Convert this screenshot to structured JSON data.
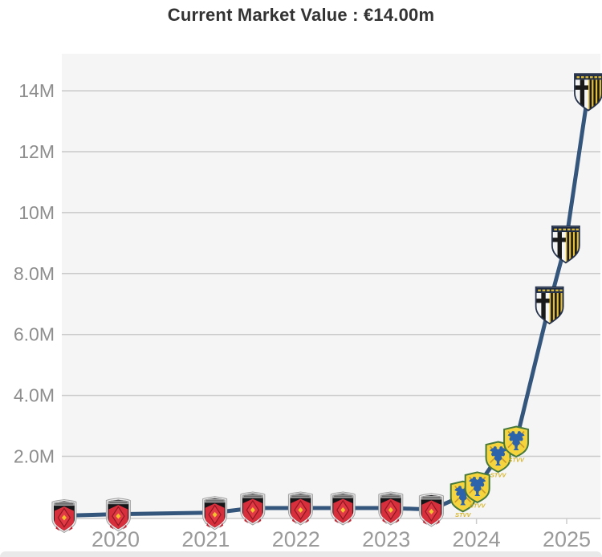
{
  "header": {
    "title": "Current Market Value : €14.00m"
  },
  "chart_data": {
    "type": "line",
    "title": "Current Market Value : €14.00m",
    "currency": "EUR",
    "unit": "million €",
    "grid": true,
    "legend": "none",
    "ylim": [
      0,
      15.3
    ],
    "xlim": [
      2019.4,
      2025.42
    ],
    "y_ticks": [
      {
        "label": "2.0M",
        "value": 2
      },
      {
        "label": "4.0M",
        "value": 4
      },
      {
        "label": "6.0M",
        "value": 6
      },
      {
        "label": "8.0M",
        "value": 8
      },
      {
        "label": "10M",
        "value": 10
      },
      {
        "label": "12M",
        "value": 12
      },
      {
        "label": "14M",
        "value": 14
      }
    ],
    "x_ticks": [
      {
        "label": "2020",
        "value": 2020
      },
      {
        "label": "2021",
        "value": 2021
      },
      {
        "label": "2022",
        "value": 2022
      },
      {
        "label": "2023",
        "value": 2023
      },
      {
        "label": "2024",
        "value": 2024
      },
      {
        "label": "2025",
        "value": 2025
      }
    ],
    "series": [
      {
        "name": "Market value",
        "color": "#35567c",
        "points": [
          {
            "date": "Jun 2019",
            "x": 2019.43,
            "value_m": 0.05,
            "value_label": "€50k",
            "club": "urawa"
          },
          {
            "date": "Jan 2020",
            "x": 2020.03,
            "value_m": 0.1,
            "value_label": "€100k",
            "club": "urawa"
          },
          {
            "date": "Feb 2021",
            "x": 2021.1,
            "value_m": 0.15,
            "value_label": "€150k",
            "club": "urawa"
          },
          {
            "date": "Jul 2021",
            "x": 2021.52,
            "value_m": 0.3,
            "value_label": "€300k",
            "club": "urawa"
          },
          {
            "date": "Jan 2022",
            "x": 2022.05,
            "value_m": 0.3,
            "value_label": "€300k",
            "club": "urawa"
          },
          {
            "date": "Jul 2022",
            "x": 2022.52,
            "value_m": 0.3,
            "value_label": "€300k",
            "club": "urawa"
          },
          {
            "date": "Jan 2023",
            "x": 2023.05,
            "value_m": 0.3,
            "value_label": "€300k",
            "club": "urawa"
          },
          {
            "date": "Jul 2023",
            "x": 2023.5,
            "value_m": 0.25,
            "value_label": "€250k",
            "club": "urawa"
          },
          {
            "date": "Nov 2023",
            "x": 2023.85,
            "value_m": 0.7,
            "value_label": "€700k",
            "club": "stvv"
          },
          {
            "date": "Jan 2024",
            "x": 2024.01,
            "value_m": 1.0,
            "value_label": "€1.00m",
            "club": "stvv"
          },
          {
            "date": "Mar 2024",
            "x": 2024.24,
            "value_m": 2.0,
            "value_label": "€2.00m",
            "club": "stvv"
          },
          {
            "date": "Jun 2024",
            "x": 2024.44,
            "value_m": 2.5,
            "value_label": "€2.50m",
            "club": "stvv"
          },
          {
            "date": "Nov 2024",
            "x": 2024.81,
            "value_m": 7.0,
            "value_label": "€7.00m",
            "club": "parma"
          },
          {
            "date": "Jan 2025",
            "x": 2024.99,
            "value_m": 9.0,
            "value_label": "€9.00m",
            "club": "parma"
          },
          {
            "date": "Apr 2025",
            "x": 2025.24,
            "value_m": 14.0,
            "value_label": "€14.00m",
            "club": "parma"
          }
        ]
      }
    ],
    "clubs": {
      "urawa": {
        "name": "Urawa Red Diamonds",
        "crest_icon": "urawa-red-diamonds-crest-icon",
        "primary": "#d7303c",
        "secondary": "#17171a"
      },
      "stvv": {
        "name": "Sint-Truidense VV",
        "crest_icon": "stvv-crest-icon",
        "crest_text": "STVV",
        "primary": "#f5d43e",
        "secondary": "#2d63ab",
        "border": "#47793b"
      },
      "parma": {
        "name": "Parma Calcio 1913",
        "crest_icon": "parma-crest-icon",
        "primary": "#f4f4f4",
        "secondary": "#191919",
        "stripe": "#e4be37"
      }
    },
    "colors": {
      "line": "#35567c",
      "plot_bg": "#f5f5f5",
      "grid": "#c9c9c9",
      "axis": "#cccccc",
      "y_label": "#8e8e8e",
      "x_label": "#9a9a9a",
      "title": "#333333",
      "page_bg": "#ffffff",
      "bottom_band": "#e9e9e9"
    }
  }
}
